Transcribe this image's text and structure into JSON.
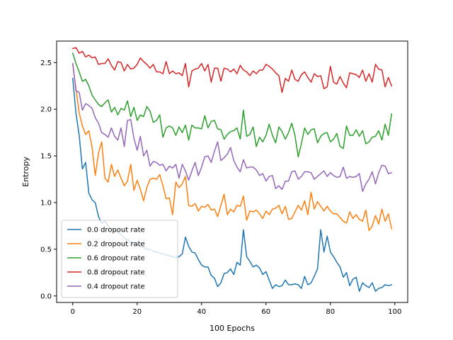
{
  "chart_data": {
    "type": "line",
    "xlabel": "100 Epochs",
    "ylabel": "Entropy",
    "xlim": [
      -5,
      104
    ],
    "ylim": [
      -0.07,
      2.73
    ],
    "xticks": [
      0,
      20,
      40,
      60,
      80,
      100
    ],
    "yticks": [
      0.0,
      0.5,
      1.0,
      1.5,
      2.0,
      2.5
    ],
    "grid": false,
    "legend_position": "lower-left",
    "series": [
      {
        "name": "0.0 dropout rate",
        "color": "#1f77b4",
        "values": [
          2.33,
          1.96,
          1.72,
          1.36,
          1.43,
          1.1,
          1.03,
          1.0,
          0.85,
          0.78,
          0.8,
          0.75,
          0.72,
          0.7,
          0.68,
          0.66,
          0.62,
          0.6,
          0.58,
          0.56,
          0.55,
          0.53,
          0.52,
          0.5,
          0.5,
          0.48,
          0.47,
          0.46,
          0.45,
          0.44,
          0.43,
          0.42,
          0.41,
          0.42,
          0.45,
          0.63,
          0.53,
          0.47,
          0.46,
          0.39,
          0.33,
          0.31,
          0.31,
          0.22,
          0.19,
          0.1,
          0.14,
          0.24,
          0.25,
          0.29,
          0.23,
          0.36,
          0.33,
          0.71,
          0.42,
          0.37,
          0.31,
          0.33,
          0.3,
          0.23,
          0.26,
          0.17,
          0.08,
          0.12,
          0.1,
          0.11,
          0.17,
          0.12,
          0.12,
          0.13,
          0.12,
          0.08,
          0.21,
          0.12,
          0.14,
          0.21,
          0.29,
          0.71,
          0.47,
          0.64,
          0.47,
          0.42,
          0.36,
          0.31,
          0.2,
          0.25,
          0.11,
          0.18,
          0.2,
          0.05,
          0.14,
          0.11,
          0.09,
          0.14,
          0.05,
          0.08,
          0.09,
          0.12,
          0.11,
          0.12
        ]
      },
      {
        "name": "0.2 dropout rate",
        "color": "#ff7f0e",
        "values": [
          2.48,
          2.22,
          1.96,
          1.82,
          1.73,
          1.77,
          1.59,
          1.29,
          1.53,
          1.65,
          1.26,
          1.22,
          1.41,
          1.28,
          1.35,
          1.26,
          1.18,
          1.23,
          1.41,
          1.13,
          1.24,
          1.14,
          1.02,
          1.16,
          1.25,
          1.26,
          1.25,
          1.3,
          1.18,
          1.04,
          1.05,
          0.87,
          1.22,
          1.16,
          1.2,
          1.28,
          0.97,
          0.96,
          0.99,
          0.91,
          0.96,
          0.95,
          0.98,
          0.92,
          0.93,
          0.85,
          0.97,
          1.09,
          0.87,
          0.93,
          0.9,
          0.97,
          0.96,
          1.07,
          0.81,
          0.91,
          0.9,
          0.92,
          0.88,
          0.83,
          0.91,
          0.87,
          0.93,
          0.94,
          0.97,
          0.88,
          0.96,
          0.82,
          0.83,
          0.9,
          0.97,
          0.92,
          1.02,
          0.87,
          1.11,
          0.93,
          1.01,
          0.96,
          0.91,
          0.96,
          0.91,
          0.88,
          0.88,
          0.84,
          0.8,
          0.78,
          0.9,
          0.83,
          0.87,
          0.82,
          0.8,
          0.92,
          0.7,
          0.75,
          0.86,
          0.77,
          0.93,
          0.8,
          0.88,
          0.72
        ]
      },
      {
        "name": "0.6 dropout rate",
        "color": "#2ca02c",
        "values": [
          2.6,
          2.49,
          2.4,
          2.3,
          2.32,
          2.25,
          2.15,
          2.1,
          2.05,
          2.03,
          2.07,
          2.1,
          1.97,
          2.02,
          1.94,
          2.01,
          1.99,
          2.09,
          1.92,
          2.02,
          1.88,
          1.94,
          1.92,
          2.03,
          1.98,
          1.86,
          1.88,
          1.94,
          1.7,
          1.8,
          1.82,
          1.8,
          1.72,
          1.81,
          1.75,
          1.83,
          1.67,
          1.83,
          1.8,
          1.8,
          1.79,
          1.93,
          1.8,
          1.87,
          1.88,
          1.79,
          1.78,
          1.68,
          1.73,
          1.76,
          1.77,
          1.8,
          1.68,
          1.99,
          1.71,
          1.73,
          1.81,
          1.6,
          1.7,
          1.65,
          1.72,
          1.84,
          1.72,
          1.64,
          1.81,
          1.76,
          1.68,
          1.75,
          1.85,
          1.72,
          1.49,
          1.63,
          1.8,
          1.73,
          1.78,
          1.79,
          1.64,
          1.71,
          1.74,
          1.75,
          1.65,
          1.68,
          1.74,
          1.6,
          1.58,
          1.82,
          1.72,
          1.72,
          1.78,
          1.71,
          1.77,
          1.63,
          1.65,
          1.7,
          1.71,
          1.77,
          1.67,
          1.84,
          1.72,
          1.95
        ]
      },
      {
        "name": "0.8 dropout rate",
        "color": "#d62728",
        "values": [
          2.65,
          2.66,
          2.6,
          2.62,
          2.56,
          2.58,
          2.55,
          2.56,
          2.48,
          2.49,
          2.49,
          2.54,
          2.47,
          2.42,
          2.51,
          2.5,
          2.41,
          2.48,
          2.43,
          2.44,
          2.48,
          2.55,
          2.51,
          2.48,
          2.44,
          2.48,
          2.4,
          2.4,
          2.38,
          2.51,
          2.38,
          2.41,
          2.38,
          2.39,
          2.36,
          2.49,
          2.24,
          2.41,
          2.43,
          2.44,
          2.49,
          2.41,
          2.48,
          2.29,
          2.44,
          2.44,
          2.3,
          2.44,
          2.43,
          2.4,
          2.43,
          2.38,
          2.47,
          2.42,
          2.4,
          2.36,
          2.41,
          2.38,
          2.42,
          2.42,
          2.48,
          2.46,
          2.43,
          2.39,
          2.36,
          2.18,
          2.33,
          2.3,
          2.42,
          2.32,
          2.3,
          2.37,
          2.4,
          2.34,
          2.29,
          2.38,
          2.35,
          2.36,
          2.22,
          2.24,
          2.46,
          2.29,
          2.27,
          2.35,
          2.28,
          2.23,
          2.39,
          2.38,
          2.37,
          2.34,
          2.42,
          2.3,
          2.38,
          2.29,
          2.48,
          2.43,
          2.42,
          2.24,
          2.34,
          2.25
        ]
      },
      {
        "name": "0.4 dropout rate",
        "color": "#9467bd",
        "values": [
          2.49,
          2.2,
          2.18,
          1.99,
          2.06,
          2.04,
          2.01,
          1.91,
          1.85,
          1.75,
          1.73,
          1.7,
          1.8,
          1.71,
          1.67,
          1.8,
          1.6,
          1.88,
          1.89,
          1.69,
          1.56,
          1.71,
          1.5,
          1.56,
          1.39,
          1.44,
          1.43,
          1.4,
          1.41,
          1.34,
          1.39,
          1.37,
          1.41,
          1.26,
          1.41,
          1.34,
          1.24,
          1.34,
          1.43,
          1.29,
          1.38,
          1.49,
          1.5,
          1.43,
          1.55,
          1.65,
          1.45,
          1.48,
          1.52,
          1.59,
          1.45,
          1.38,
          1.33,
          1.46,
          1.37,
          1.38,
          1.38,
          1.35,
          1.29,
          1.31,
          1.23,
          1.28,
          1.29,
          1.15,
          1.18,
          1.14,
          1.23,
          1.23,
          1.33,
          1.34,
          1.25,
          1.28,
          1.33,
          1.33,
          1.32,
          1.25,
          1.28,
          1.31,
          1.34,
          1.28,
          1.32,
          1.29,
          1.27,
          1.28,
          1.38,
          1.26,
          1.28,
          1.27,
          1.28,
          1.31,
          1.12,
          1.2,
          1.25,
          1.33,
          1.2,
          1.32,
          1.4,
          1.39,
          1.31,
          1.32
        ]
      }
    ]
  }
}
